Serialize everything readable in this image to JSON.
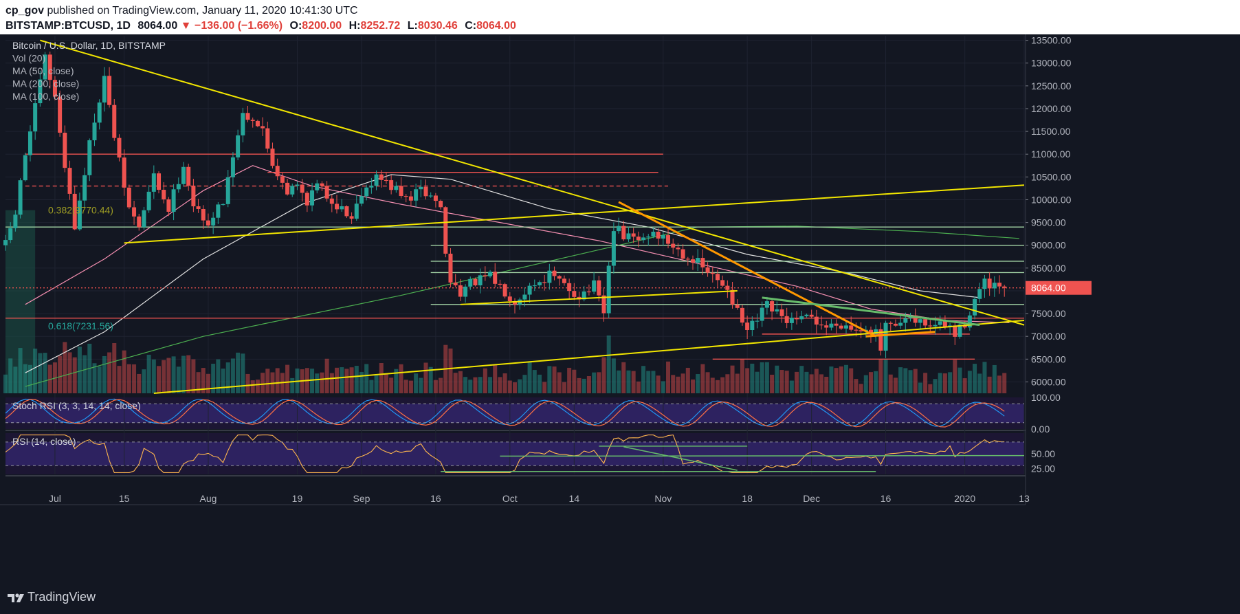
{
  "header": {
    "author": "cp_gov",
    "published_text": "published on TradingView.com, January 11, 2020 10:41:30 UTC",
    "symbol": "BITSTAMP:BTCUSD, 1D",
    "last": "8064.00",
    "change_arrow": "▼",
    "change": "−136.00 (−1.66%)",
    "o_label": "O:",
    "o": "8200.00",
    "h_label": "H:",
    "h": "8252.72",
    "l_label": "L:",
    "l": "8030.46",
    "c_label": "C:",
    "c": "8064.00"
  },
  "legend": [
    "Bitcoin / U.S. Dollar, 1D, BITSTAMP",
    "Vol (20)",
    "MA (50, close)",
    "MA (200, close)",
    "MA (100, close)"
  ],
  "pane_labels": {
    "stoch": "Stoch RSI (3, 3, 14, 14, close)",
    "rsi": "RSI (14, close)"
  },
  "fib": [
    {
      "label": "0.382(9770.44)",
      "value": 9770.44,
      "color": "#9e9d24"
    },
    {
      "label": "0.618(7231.56)",
      "value": 7231.56,
      "color": "#26a69a"
    }
  ],
  "price_tag": {
    "label": "8064.00",
    "value": 8064
  },
  "brand": "TradingView",
  "colors": {
    "bull": "#26a69a",
    "bear": "#ef5350",
    "trend": "#f2e600",
    "orange": "#ff9800",
    "green_line": "#66bb6a",
    "ma50": "#f48fb1",
    "ma100": "#e0e0e0",
    "ma200": "#4caf50"
  },
  "chart_data": {
    "type": "candlestick",
    "symbol": "BITSTAMP:BTCUSD",
    "interval": "1D",
    "y_axis_ticks": [
      6000,
      6500,
      7000,
      7500,
      8000,
      8500,
      9000,
      9500,
      10000,
      10500,
      11000,
      11500,
      12000,
      12500,
      13000,
      13500
    ],
    "y_axis_labels": [
      "6000.00",
      "6500.00",
      "7000.00",
      "7500.00",
      "8000.00",
      "8500.00",
      "9000.00",
      "9500.00",
      "10000.00",
      "10500.00",
      "11000.00",
      "11500.00",
      "12000.00",
      "12500.00",
      "13000.00",
      "13500.00"
    ],
    "ylim": [
      5750,
      13600
    ],
    "x_axis_labels": [
      {
        "label": "Jul",
        "day": 10
      },
      {
        "label": "15",
        "day": 24
      },
      {
        "label": "Aug",
        "day": 41
      },
      {
        "label": "19",
        "day": 59
      },
      {
        "label": "Sep",
        "day": 72
      },
      {
        "label": "16",
        "day": 87
      },
      {
        "label": "Oct",
        "day": 102
      },
      {
        "label": "14",
        "day": 115
      },
      {
        "label": "Nov",
        "day": 133
      },
      {
        "label": "18",
        "day": 150
      },
      {
        "label": "Dec",
        "day": 163
      },
      {
        "label": "16",
        "day": 178
      },
      {
        "label": "2020",
        "day": 194
      },
      {
        "label": "13",
        "day": 206
      }
    ],
    "stoch_rsi_ticks": [
      {
        "label": "100.00",
        "value": 100
      },
      {
        "label": "0.00",
        "value": 0
      }
    ],
    "rsi_ticks": [
      {
        "label": "50.00",
        "value": 50
      },
      {
        "label": "25.00",
        "value": 25
      }
    ],
    "rsi_range": [
      15,
      85
    ],
    "anchors": [
      [
        0,
        9000
      ],
      [
        2,
        9700
      ],
      [
        4,
        11000
      ],
      [
        6,
        12000
      ],
      [
        8,
        13100
      ],
      [
        10,
        12200
      ],
      [
        12,
        10800
      ],
      [
        14,
        9400
      ],
      [
        16,
        10600
      ],
      [
        18,
        11800
      ],
      [
        20,
        12700
      ],
      [
        21,
        12000
      ],
      [
        23,
        10800
      ],
      [
        25,
        9800
      ],
      [
        27,
        9400
      ],
      [
        30,
        10500
      ],
      [
        33,
        9800
      ],
      [
        36,
        10800
      ],
      [
        38,
        9900
      ],
      [
        40,
        9500
      ],
      [
        42,
        9600
      ],
      [
        44,
        10000
      ],
      [
        46,
        11000
      ],
      [
        48,
        11900
      ],
      [
        50,
        11800
      ],
      [
        52,
        11500
      ],
      [
        54,
        10800
      ],
      [
        57,
        10200
      ],
      [
        59,
        10300
      ],
      [
        61,
        10000
      ],
      [
        63,
        10300
      ],
      [
        65,
        10100
      ],
      [
        68,
        9800
      ],
      [
        70,
        9600
      ],
      [
        72,
        10200
      ],
      [
        75,
        10500
      ],
      [
        78,
        10300
      ],
      [
        81,
        10000
      ],
      [
        84,
        10200
      ],
      [
        87,
        10000
      ],
      [
        88,
        9800
      ],
      [
        89,
        8800
      ],
      [
        90,
        8200
      ],
      [
        92,
        8000
      ],
      [
        95,
        8200
      ],
      [
        98,
        8300
      ],
      [
        101,
        8000
      ],
      [
        103,
        7800
      ],
      [
        106,
        8100
      ],
      [
        110,
        8350
      ],
      [
        113,
        8100
      ],
      [
        116,
        7900
      ],
      [
        119,
        8100
      ],
      [
        121,
        7500
      ],
      [
        122,
        8500
      ],
      [
        123,
        9400
      ],
      [
        125,
        9200
      ],
      [
        128,
        9100
      ],
      [
        131,
        9300
      ],
      [
        133,
        9150
      ],
      [
        136,
        8900
      ],
      [
        139,
        8700
      ],
      [
        142,
        8400
      ],
      [
        144,
        8200
      ],
      [
        146,
        8100
      ],
      [
        148,
        7500
      ],
      [
        150,
        7100
      ],
      [
        152,
        7350
      ],
      [
        154,
        7650
      ],
      [
        157,
        7400
      ],
      [
        160,
        7300
      ],
      [
        163,
        7400
      ],
      [
        166,
        7200
      ],
      [
        169,
        7300
      ],
      [
        172,
        7150
      ],
      [
        174,
        7250
      ],
      [
        176,
        7050
      ],
      [
        177,
        6700
      ],
      [
        178,
        7200
      ],
      [
        180,
        7150
      ],
      [
        182,
        7350
      ],
      [
        185,
        7300
      ],
      [
        188,
        7250
      ],
      [
        191,
        7200
      ],
      [
        192,
        7000
      ],
      [
        194,
        7300
      ],
      [
        196,
        7800
      ],
      [
        197,
        8000
      ],
      [
        198,
        8150
      ],
      [
        200,
        8050
      ],
      [
        202,
        8064
      ]
    ],
    "ma200": [
      [
        4,
        5900
      ],
      [
        40,
        7000
      ],
      [
        80,
        7900
      ],
      [
        120,
        8900
      ],
      [
        140,
        9400
      ],
      [
        160,
        9420
      ],
      [
        185,
        9300
      ],
      [
        205,
        9150
      ]
    ],
    "ma100": [
      [
        4,
        6200
      ],
      [
        20,
        7100
      ],
      [
        40,
        8700
      ],
      [
        60,
        9900
      ],
      [
        78,
        10550
      ],
      [
        90,
        10450
      ],
      [
        110,
        9800
      ],
      [
        130,
        9400
      ],
      [
        150,
        8800
      ],
      [
        170,
        8400
      ],
      [
        185,
        8000
      ],
      [
        197,
        7850
      ]
    ],
    "ma50": [
      [
        4,
        7700
      ],
      [
        20,
        8700
      ],
      [
        40,
        10200
      ],
      [
        50,
        10750
      ],
      [
        62,
        10300
      ],
      [
        80,
        9900
      ],
      [
        100,
        9500
      ],
      [
        120,
        9100
      ],
      [
        140,
        8600
      ],
      [
        160,
        8100
      ],
      [
        175,
        7600
      ],
      [
        190,
        7350
      ],
      [
        203,
        7300
      ]
    ],
    "horizontal_levels": [
      {
        "y": 11000,
        "x0": 4,
        "x1": 133,
        "color": "#ef5350",
        "style": "solid"
      },
      {
        "y": 10600,
        "x0": 53,
        "x1": 132,
        "color": "#ef5350",
        "style": "solid"
      },
      {
        "y": 10300,
        "x0": 4,
        "x1": 134,
        "color": "#ef5350",
        "style": "dashed"
      },
      {
        "y": 9400,
        "x0": 0,
        "x1": 206,
        "color": "#a5d6a7",
        "style": "solid"
      },
      {
        "y": 9000,
        "x0": 86,
        "x1": 206,
        "color": "#a5d6a7",
        "style": "solid"
      },
      {
        "y": 8650,
        "x0": 86,
        "x1": 206,
        "color": "#a5d6a7",
        "style": "solid"
      },
      {
        "y": 8400,
        "x0": 86,
        "x1": 206,
        "color": "#a5d6a7",
        "style": "solid"
      },
      {
        "y": 8064,
        "x0": 0,
        "x1": 206,
        "color": "#ef5350",
        "style": "dotted"
      },
      {
        "y": 7700,
        "x0": 86,
        "x1": 206,
        "color": "#a5d6a7",
        "style": "solid"
      },
      {
        "y": 7400,
        "x0": 0,
        "x1": 206,
        "color": "#ef5350",
        "style": "solid"
      },
      {
        "y": 7050,
        "x0": 153,
        "x1": 195,
        "color": "#ef5350",
        "style": "solid"
      },
      {
        "y": 6500,
        "x0": 143,
        "x1": 196,
        "color": "#ef5350",
        "style": "solid"
      }
    ],
    "trendlines": [
      {
        "x0": 7,
        "y0": 13500,
        "x1": 206,
        "y1": 7250,
        "color": "#f2e600",
        "width": 2
      },
      {
        "x0": 24,
        "y0": 9050,
        "x1": 206,
        "y1": 10320,
        "color": "#f2e600",
        "width": 2
      },
      {
        "x0": 30,
        "y0": 5750,
        "x1": 206,
        "y1": 7350,
        "color": "#f2e600",
        "width": 2
      },
      {
        "x0": 92,
        "y0": 7700,
        "x1": 148,
        "y1": 8000,
        "color": "#f2e600",
        "width": 2
      },
      {
        "x0": 124,
        "y0": 9950,
        "x1": 176,
        "y1": 7000,
        "color": "#ff9800",
        "width": 3
      },
      {
        "x0": 174,
        "y0": 7000,
        "x1": 188,
        "y1": 7100,
        "color": "#ff9800",
        "width": 3
      },
      {
        "x0": 153,
        "y0": 7850,
        "x1": 197,
        "y1": 7250,
        "color": "#66bb6a",
        "width": 3
      }
    ],
    "rsi_lines": [
      {
        "x0": 100,
        "y0": 46,
        "x1": 206,
        "y1": 47,
        "color": "#66bb6a"
      },
      {
        "x0": 88,
        "y0": 20,
        "x1": 176,
        "y1": 20,
        "color": "#66bb6a"
      },
      {
        "x0": 120,
        "y0": 63,
        "x1": 150,
        "y1": 63,
        "color": "#66bb6a"
      },
      {
        "x0": 125,
        "y0": 62,
        "x1": 148,
        "y1": 22,
        "color": "#66bb6a"
      }
    ],
    "rsi_band": [
      30,
      70
    ],
    "stoch_band": [
      20,
      80
    ]
  }
}
